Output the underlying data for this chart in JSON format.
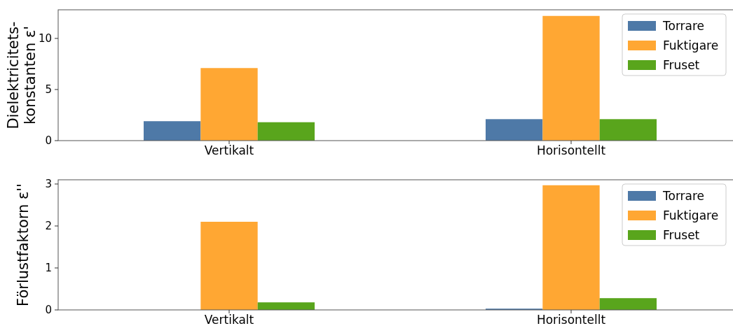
{
  "chart_data": [
    {
      "type": "bar",
      "ylabel": "Dielektricitets-\nkonstanten ε'",
      "categories": [
        "Vertikalt",
        "Horisontellt"
      ],
      "series": [
        {
          "name": "Torrare",
          "color": "#4e79a7",
          "values": [
            1.9,
            2.1
          ]
        },
        {
          "name": "Fuktigare",
          "color": "#ffa733",
          "values": [
            7.1,
            12.2
          ]
        },
        {
          "name": "Fruset",
          "color": "#59a51c",
          "values": [
            1.8,
            2.1
          ]
        }
      ],
      "ylim": [
        0,
        12.8
      ],
      "yticks": [
        0,
        5,
        10
      ],
      "legend": "top right"
    },
    {
      "type": "bar",
      "ylabel": "Förlustfaktorn ε''",
      "categories": [
        "Vertikalt",
        "Horisontellt"
      ],
      "series": [
        {
          "name": "Torrare",
          "color": "#4e79a7",
          "values": [
            0,
            0.03
          ]
        },
        {
          "name": "Fuktigare",
          "color": "#ffa733",
          "values": [
            2.1,
            2.97
          ]
        },
        {
          "name": "Fruset",
          "color": "#59a51c",
          "values": [
            0.18,
            0.28
          ]
        }
      ],
      "ylim": [
        0,
        3.1
      ],
      "yticks": [
        0,
        1,
        2,
        3
      ],
      "legend": "top right"
    }
  ]
}
